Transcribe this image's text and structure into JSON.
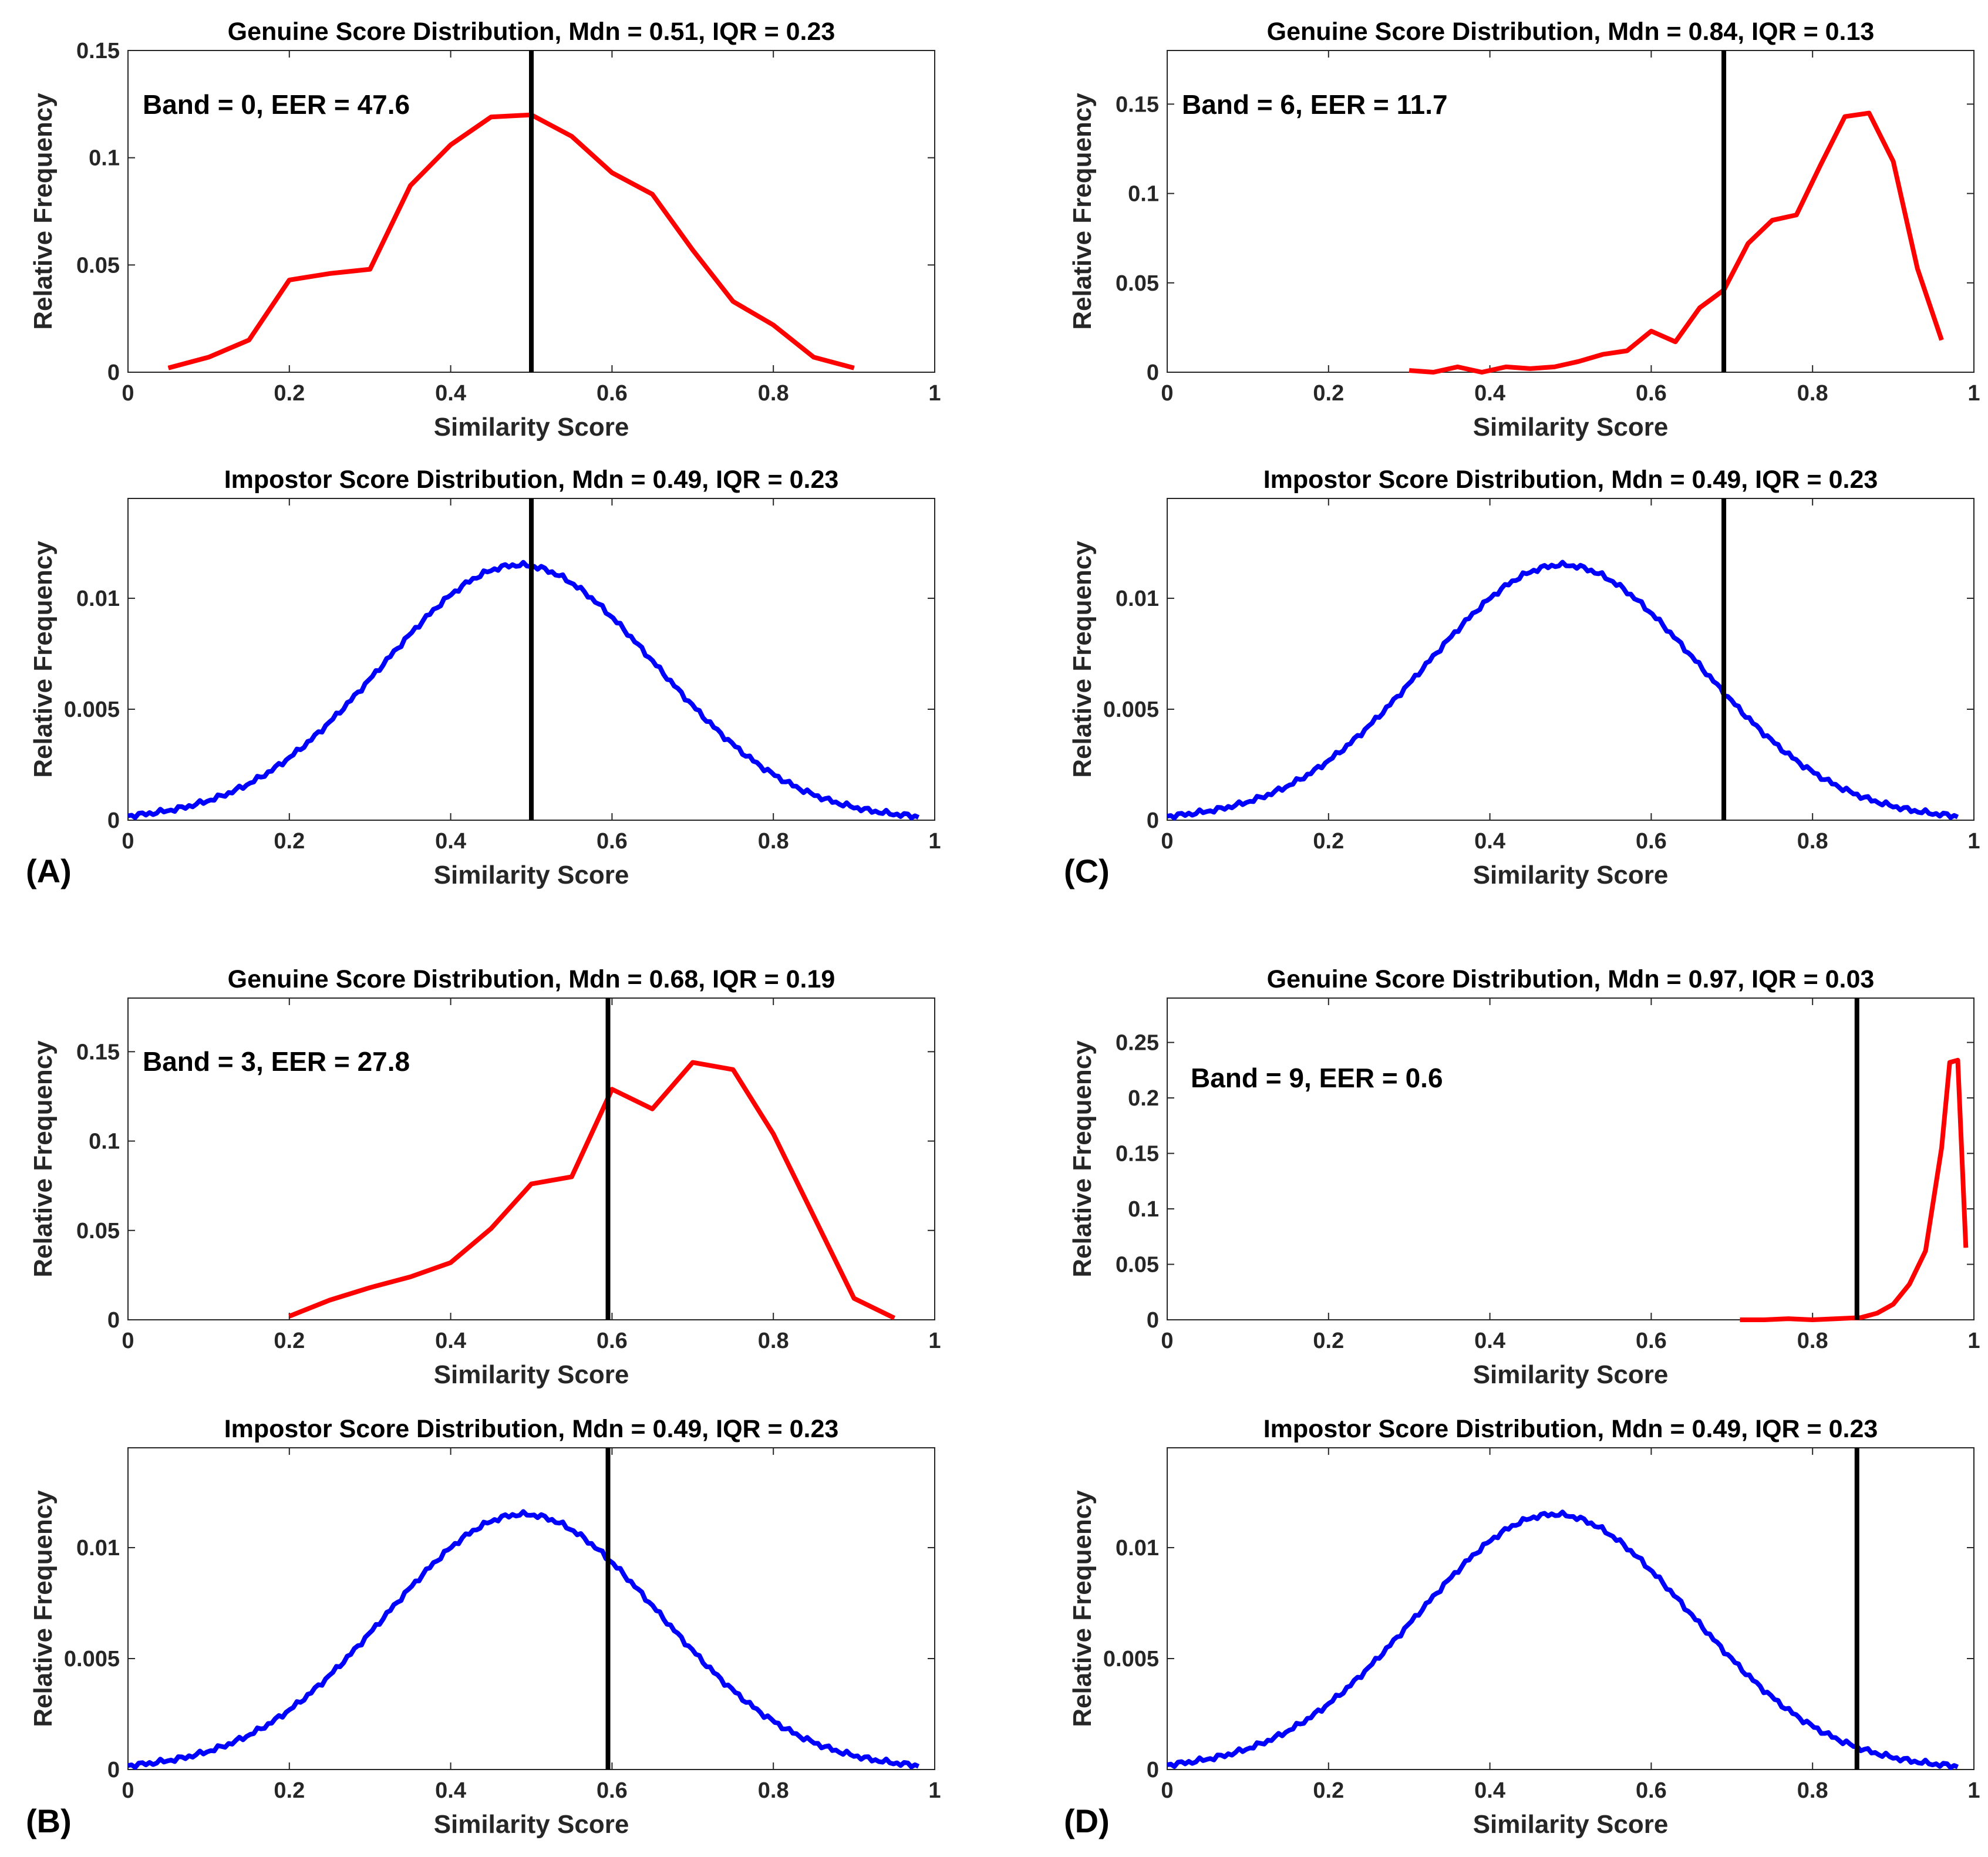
{
  "colors": {
    "genuine": "#ff0000",
    "impostor": "#0000ff",
    "threshold": "#000000",
    "axes": "#262626"
  },
  "chart_data": [
    {
      "id": "A-genuine",
      "panel": "(A)",
      "type": "line",
      "title": "Genuine Score Distribution, Mdn = 0.51, IQR = 0.23",
      "xlabel": "Similarity Score",
      "ylabel": "Relative Frequency",
      "annotation": "Band = 0, EER = 47.6",
      "xlim": [
        0,
        1
      ],
      "ylim": [
        0,
        0.15
      ],
      "xticks": [
        0,
        0.2,
        0.4,
        0.6,
        0.8,
        1
      ],
      "xtick_labels": [
        "0",
        "0.2",
        "0.4",
        "0.6",
        "0.8",
        "1"
      ],
      "yticks": [
        0,
        0.05,
        0.1,
        0.15
      ],
      "ytick_labels": [
        "0",
        "0.05",
        "0.1",
        "0.15"
      ],
      "threshold": 0.5,
      "series": [
        {
          "name": "Genuine",
          "color": "#ff0000",
          "x": [
            0.05,
            0.1,
            0.15,
            0.2,
            0.25,
            0.3,
            0.35,
            0.4,
            0.45,
            0.5,
            0.55,
            0.6,
            0.65,
            0.7,
            0.75,
            0.8,
            0.85,
            0.9
          ],
          "y": [
            0.002,
            0.007,
            0.015,
            0.043,
            0.046,
            0.048,
            0.087,
            0.106,
            0.119,
            0.12,
            0.11,
            0.093,
            0.083,
            0.057,
            0.033,
            0.022,
            0.007,
            0.002
          ]
        }
      ]
    },
    {
      "id": "A-impostor",
      "panel": "(A)",
      "type": "line",
      "title": "Impostor Score Distribution, Mdn = 0.49, IQR = 0.23",
      "xlabel": "Similarity Score",
      "ylabel": "Relative Frequency",
      "xlim": [
        0,
        1
      ],
      "ylim": [
        0,
        0.0145
      ],
      "xticks": [
        0,
        0.2,
        0.4,
        0.6,
        0.8,
        1
      ],
      "xtick_labels": [
        "0",
        "0.2",
        "0.4",
        "0.6",
        "0.8",
        "1"
      ],
      "yticks": [
        0,
        0.005,
        0.01
      ],
      "ytick_labels": [
        "0",
        "0.005",
        "0.01"
      ],
      "threshold": 0.5,
      "series": [
        {
          "name": "Impostor",
          "color": "#0000ff",
          "curve": {
            "mu": 0.485,
            "sigma": 0.17,
            "peak": 0.0115,
            "x_min": 0,
            "x_max": 0.98,
            "n": 220
          }
        }
      ]
    },
    {
      "id": "B-genuine",
      "panel": "(B)",
      "type": "line",
      "title": "Genuine Score Distribution, Mdn = 0.68, IQR = 0.19",
      "xlabel": "Similarity Score",
      "ylabel": "Relative Frequency",
      "annotation": "Band = 3, EER = 27.8",
      "xlim": [
        0,
        1
      ],
      "ylim": [
        0,
        0.18
      ],
      "xticks": [
        0,
        0.2,
        0.4,
        0.6,
        0.8,
        1
      ],
      "xtick_labels": [
        "0",
        "0.2",
        "0.4",
        "0.6",
        "0.8",
        "1"
      ],
      "yticks": [
        0,
        0.05,
        0.1,
        0.15
      ],
      "ytick_labels": [
        "0",
        "0.05",
        "0.1",
        "0.15"
      ],
      "threshold": 0.595,
      "series": [
        {
          "name": "Genuine",
          "color": "#ff0000",
          "x": [
            0.2,
            0.25,
            0.3,
            0.35,
            0.4,
            0.45,
            0.5,
            0.55,
            0.6,
            0.65,
            0.7,
            0.75,
            0.8,
            0.85,
            0.9,
            0.95
          ],
          "y": [
            0.002,
            0.011,
            0.018,
            0.024,
            0.032,
            0.051,
            0.076,
            0.08,
            0.129,
            0.118,
            0.144,
            0.14,
            0.104,
            0.058,
            0.012,
            0.001
          ]
        }
      ]
    },
    {
      "id": "B-impostor",
      "panel": "(B)",
      "type": "line",
      "title": "Impostor Score Distribution, Mdn = 0.49, IQR = 0.23",
      "xlabel": "Similarity Score",
      "ylabel": "Relative Frequency",
      "xlim": [
        0,
        1
      ],
      "ylim": [
        0,
        0.0145
      ],
      "xticks": [
        0,
        0.2,
        0.4,
        0.6,
        0.8,
        1
      ],
      "xtick_labels": [
        "0",
        "0.2",
        "0.4",
        "0.6",
        "0.8",
        "1"
      ],
      "yticks": [
        0,
        0.005,
        0.01
      ],
      "ytick_labels": [
        "0",
        "0.005",
        "0.01"
      ],
      "threshold": 0.595,
      "series": [
        {
          "name": "Impostor",
          "color": "#0000ff",
          "curve": {
            "mu": 0.49,
            "sigma": 0.17,
            "peak": 0.0115,
            "x_min": 0,
            "x_max": 0.98,
            "n": 220
          }
        }
      ]
    },
    {
      "id": "C-genuine",
      "panel": "(C)",
      "type": "line",
      "title": "Genuine Score Distribution, Mdn = 0.84, IQR = 0.13",
      "xlabel": "Similarity Score",
      "ylabel": "Relative Frequency",
      "annotation": "Band = 6, EER = 11.7",
      "xlim": [
        0,
        1
      ],
      "ylim": [
        0,
        0.18
      ],
      "xticks": [
        0,
        0.2,
        0.4,
        0.6,
        0.8,
        1
      ],
      "xtick_labels": [
        "0",
        "0.2",
        "0.4",
        "0.6",
        "0.8",
        "1"
      ],
      "yticks": [
        0,
        0.05,
        0.1,
        0.15
      ],
      "ytick_labels": [
        "0",
        "0.05",
        "0.1",
        "0.15"
      ],
      "threshold": 0.69,
      "series": [
        {
          "name": "Genuine",
          "color": "#ff0000",
          "x": [
            0.3,
            0.33,
            0.36,
            0.39,
            0.42,
            0.45,
            0.48,
            0.51,
            0.54,
            0.57,
            0.6,
            0.63,
            0.66,
            0.69,
            0.72,
            0.75,
            0.78,
            0.81,
            0.84,
            0.87,
            0.9,
            0.93,
            0.96
          ],
          "y": [
            0.001,
            0.0,
            0.003,
            0.0,
            0.003,
            0.002,
            0.003,
            0.006,
            0.01,
            0.012,
            0.023,
            0.017,
            0.036,
            0.046,
            0.072,
            0.085,
            0.088,
            0.116,
            0.143,
            0.145,
            0.118,
            0.058,
            0.018
          ]
        }
      ]
    },
    {
      "id": "C-impostor",
      "panel": "(C)",
      "type": "line",
      "title": "Impostor Score Distribution, Mdn = 0.49, IQR = 0.23",
      "xlabel": "Similarity Score",
      "ylabel": "Relative Frequency",
      "xlim": [
        0,
        1
      ],
      "ylim": [
        0,
        0.0145
      ],
      "xticks": [
        0,
        0.2,
        0.4,
        0.6,
        0.8,
        1
      ],
      "xtick_labels": [
        "0",
        "0.2",
        "0.4",
        "0.6",
        "0.8",
        "1"
      ],
      "yticks": [
        0,
        0.005,
        0.01
      ],
      "ytick_labels": [
        "0",
        "0.005",
        "0.01"
      ],
      "threshold": 0.69,
      "series": [
        {
          "name": "Impostor",
          "color": "#0000ff",
          "curve": {
            "mu": 0.49,
            "sigma": 0.17,
            "peak": 0.0115,
            "x_min": 0,
            "x_max": 0.98,
            "n": 220
          }
        }
      ]
    },
    {
      "id": "D-genuine",
      "panel": "(D)",
      "type": "line",
      "title": "Genuine Score Distribution, Mdn = 0.97, IQR = 0.03",
      "xlabel": "Similarity Score",
      "ylabel": "Relative Frequency",
      "annotation": "Band = 9, EER = 0.6",
      "xlim": [
        0,
        1
      ],
      "ylim": [
        0,
        0.29
      ],
      "xticks": [
        0,
        0.2,
        0.4,
        0.6,
        0.8,
        1
      ],
      "xtick_labels": [
        "0",
        "0.2",
        "0.4",
        "0.6",
        "0.8",
        "1"
      ],
      "yticks": [
        0,
        0.05,
        0.1,
        0.15,
        0.2,
        0.25
      ],
      "ytick_labels": [
        "0",
        "0.05",
        "0.1",
        "0.15",
        "0.2",
        "0.25"
      ],
      "threshold": 0.855,
      "series": [
        {
          "name": "Genuine",
          "color": "#ff0000",
          "x": [
            0.71,
            0.74,
            0.77,
            0.8,
            0.83,
            0.86,
            0.88,
            0.9,
            0.92,
            0.94,
            0.96,
            0.97,
            0.98,
            0.99
          ],
          "y": [
            0.0,
            0.0,
            0.001,
            0.0,
            0.001,
            0.002,
            0.006,
            0.014,
            0.032,
            0.062,
            0.155,
            0.232,
            0.234,
            0.065
          ]
        }
      ]
    },
    {
      "id": "D-impostor",
      "panel": "(D)",
      "type": "line",
      "title": "Impostor Score Distribution, Mdn = 0.49, IQR = 0.23",
      "xlabel": "Similarity Score",
      "ylabel": "Relative Frequency",
      "xlim": [
        0,
        1
      ],
      "ylim": [
        0,
        0.0145
      ],
      "xticks": [
        0,
        0.2,
        0.4,
        0.6,
        0.8,
        1
      ],
      "xtick_labels": [
        "0",
        "0.2",
        "0.4",
        "0.6",
        "0.8",
        "1"
      ],
      "yticks": [
        0,
        0.005,
        0.01
      ],
      "ytick_labels": [
        "0",
        "0.005",
        "0.01"
      ],
      "threshold": 0.855,
      "series": [
        {
          "name": "Impostor",
          "color": "#0000ff",
          "curve": {
            "mu": 0.48,
            "sigma": 0.17,
            "peak": 0.0115,
            "x_min": 0,
            "x_max": 0.98,
            "n": 220
          }
        }
      ]
    }
  ],
  "panel_letters": [
    "(A)",
    "(B)",
    "(C)",
    "(D)"
  ]
}
